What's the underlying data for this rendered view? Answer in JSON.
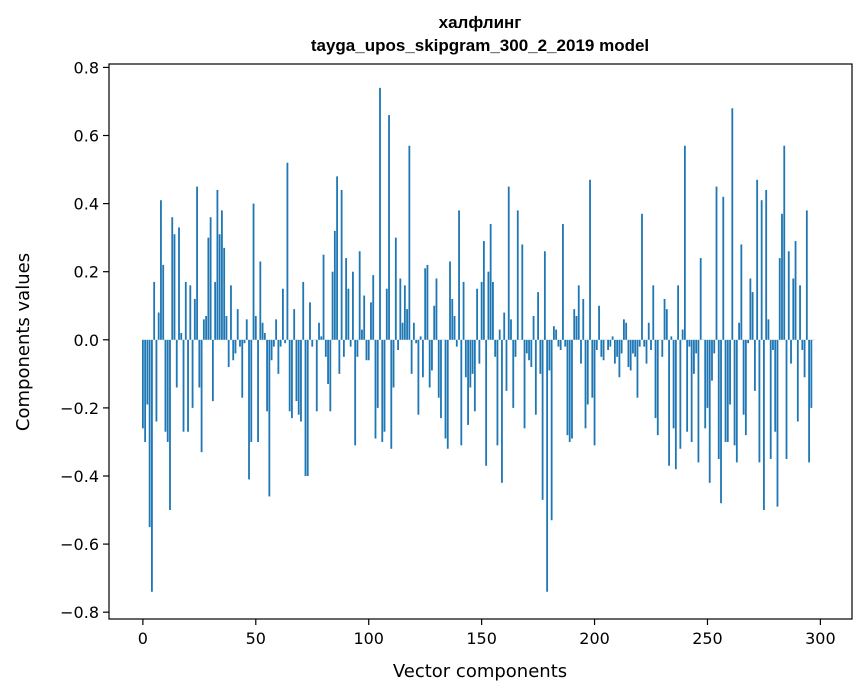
{
  "chart_data": {
    "type": "bar",
    "title": "халфлинг",
    "subtitle": "tayga_upos_skipgram_300_2_2019 model",
    "xlabel": "Vector components",
    "ylabel": "Components values",
    "xlim": [
      -15,
      314
    ],
    "ylim": [
      -0.82,
      0.81
    ],
    "xticks": [
      0,
      50,
      100,
      150,
      200,
      250,
      300
    ],
    "yticks": [
      -0.8,
      -0.6,
      -0.4,
      -0.2,
      0.0,
      0.2,
      0.4,
      0.6,
      0.8
    ],
    "ytick_labels": [
      "−0.8",
      "−0.6",
      "−0.4",
      "−0.2",
      "0.0",
      "0.2",
      "0.4",
      "0.6",
      "0.8"
    ],
    "xtick_labels": [
      "0",
      "50",
      "100",
      "150",
      "200",
      "250",
      "300"
    ],
    "bar_color": "#1f77b4",
    "grid": false,
    "values": [
      -0.26,
      -0.3,
      -0.19,
      -0.55,
      -0.74,
      0.17,
      -0.24,
      0.08,
      0.41,
      0.22,
      -0.27,
      -0.3,
      -0.5,
      0.36,
      0.31,
      -0.14,
      0.33,
      0.02,
      -0.27,
      0.17,
      -0.27,
      0.16,
      -0.2,
      0.12,
      0.45,
      -0.14,
      -0.33,
      0.06,
      0.07,
      0.3,
      0.36,
      -0.18,
      0.17,
      0.44,
      0.31,
      0.38,
      0.27,
      0.07,
      -0.08,
      0.16,
      -0.06,
      -0.04,
      0.09,
      -0.02,
      -0.17,
      -0.01,
      0.06,
      -0.41,
      -0.3,
      0.4,
      0.07,
      -0.3,
      0.23,
      0.05,
      0.02,
      -0.21,
      -0.46,
      -0.06,
      -0.02,
      0.06,
      -0.1,
      -0.02,
      0.15,
      -0.01,
      0.52,
      -0.21,
      -0.23,
      0.09,
      -0.18,
      -0.22,
      -0.24,
      0.17,
      -0.4,
      -0.4,
      0.11,
      -0.02,
      0.0,
      -0.21,
      0.05,
      0.01,
      0.25,
      -0.05,
      -0.13,
      -0.21,
      0.2,
      0.32,
      0.48,
      -0.1,
      0.44,
      -0.05,
      0.24,
      0.15,
      -0.02,
      0.2,
      -0.31,
      -0.05,
      0.26,
      0.03,
      0.13,
      -0.06,
      -0.06,
      0.11,
      0.19,
      -0.29,
      -0.2,
      0.74,
      -0.3,
      -0.27,
      0.15,
      0.66,
      -0.32,
      -0.14,
      0.3,
      -0.03,
      0.18,
      0.05,
      0.16,
      0.09,
      0.57,
      -0.1,
      0.05,
      -0.01,
      -0.22,
      0.01,
      -0.11,
      0.21,
      0.22,
      -0.14,
      -0.09,
      0.1,
      0.18,
      -0.17,
      -0.23,
      0.0,
      -0.29,
      -0.32,
      0.23,
      0.12,
      0.07,
      -0.02,
      0.38,
      -0.31,
      0.17,
      -0.11,
      -0.25,
      -0.14,
      -0.1,
      -0.21,
      0.15,
      -0.07,
      0.17,
      0.29,
      -0.37,
      0.2,
      0.34,
      0.17,
      -0.05,
      -0.31,
      0.03,
      -0.42,
      0.08,
      -0.15,
      0.45,
      0.06,
      -0.2,
      -0.05,
      0.38,
      0.0,
      0.28,
      -0.26,
      -0.04,
      -0.06,
      -0.08,
      0.07,
      -0.22,
      0.14,
      -0.1,
      -0.47,
      0.26,
      -0.74,
      -0.09,
      -0.53,
      0.04,
      0.03,
      -0.02,
      -0.03,
      0.34,
      -0.02,
      -0.28,
      -0.3,
      -0.29,
      0.09,
      0.07,
      0.16,
      -0.07,
      0.12,
      -0.26,
      -0.19,
      0.47,
      -0.17,
      -0.31,
      -0.03,
      0.1,
      -0.05,
      -0.06,
      0.0,
      -0.03,
      -0.02,
      0.01,
      -0.07,
      -0.05,
      -0.11,
      -0.04,
      0.06,
      0.05,
      -0.08,
      -0.09,
      -0.04,
      -0.05,
      -0.17,
      -0.02,
      0.37,
      -0.02,
      -0.07,
      0.05,
      -0.03,
      0.16,
      -0.23,
      -0.28,
      0.0,
      -0.05,
      0.12,
      0.09,
      -0.37,
      0.01,
      -0.26,
      -0.38,
      0.16,
      -0.32,
      0.03,
      0.57,
      -0.27,
      -0.02,
      -0.3,
      -0.1,
      -0.04,
      -0.36,
      0.24,
      0.0,
      -0.26,
      -0.2,
      -0.42,
      -0.12,
      -0.04,
      0.45,
      -0.35,
      -0.48,
      0.42,
      -0.3,
      -0.3,
      -0.19,
      0.68,
      -0.31,
      -0.36,
      0.05,
      0.28,
      -0.22,
      -0.28,
      -0.01,
      0.18,
      0.14,
      -0.15,
      0.47,
      -0.36,
      0.41,
      -0.5,
      0.44,
      0.06,
      -0.35,
      -0.03,
      -0.27,
      -0.49,
      0.24,
      0.37,
      0.57,
      -0.35,
      0.26,
      -0.07,
      0.18,
      0.29,
      -0.24,
      0.16,
      -0.03,
      -0.11,
      0.38,
      -0.36,
      -0.2,
      0.0
    ]
  }
}
